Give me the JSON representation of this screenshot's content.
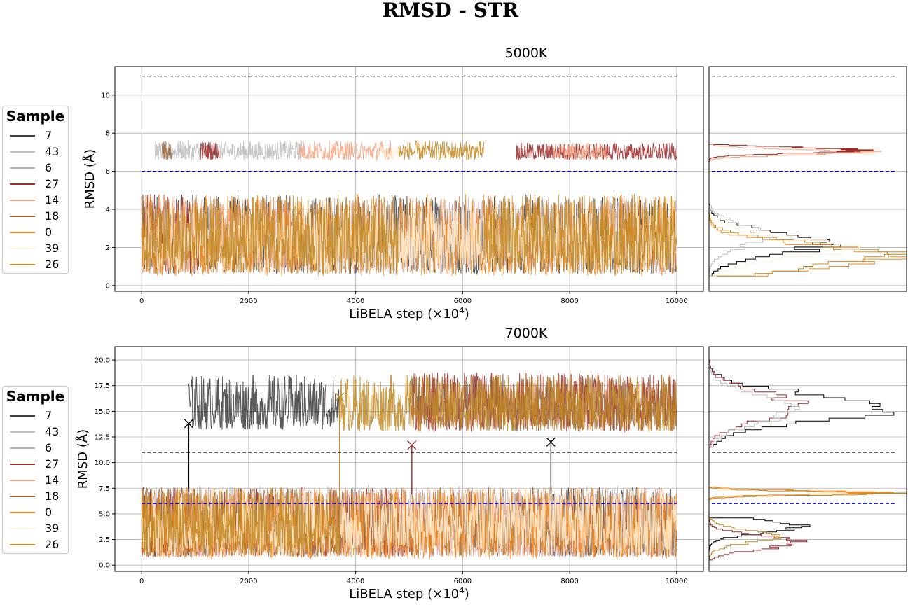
{
  "title": "RMSD - STR",
  "colors": {
    "7": "#3d3d3d",
    "43": "#bdbdbd",
    "6": "#c8a9b0",
    "27": "#9c2a2a",
    "14": "#f4a582",
    "18": "#a0673d",
    "0": "#f08a1e",
    "39": "#fff2d8",
    "26": "#c28a25",
    "thr_high": "#000000",
    "thr_low": "#0000ff"
  },
  "chart_data": [
    {
      "type": "line",
      "panel_title": "5000K",
      "xlabel": "LiBELA step (×10",
      "xlabel_sup": "4",
      "xlabel_end": ")",
      "ylabel": "RMSD (Å)",
      "xlim": [
        -500,
        10500
      ],
      "ylim": [
        -0.3,
        11.5
      ],
      "xticks": [
        0,
        2000,
        4000,
        6000,
        8000,
        10000
      ],
      "yticks": [
        0,
        2,
        4,
        6,
        8,
        10
      ],
      "ytick_labels": [
        "0",
        "2",
        "4",
        "6",
        "8",
        "10"
      ],
      "threshold_high": 11,
      "threshold_low": 6,
      "legend_title": "Sample",
      "series": [
        {
          "name": "7",
          "bands": [
            {
              "x0": 0,
              "x1": 10000,
              "lo": 0.6,
              "hi": 4.8
            }
          ],
          "markers": []
        },
        {
          "name": "43",
          "bands": [
            {
              "x0": 0,
              "x1": 250,
              "lo": 0.6,
              "hi": 4.8
            },
            {
              "x0": 250,
              "x1": 3000,
              "lo": 6.6,
              "hi": 7.6
            }
          ],
          "markers": []
        },
        {
          "name": "6",
          "bands": [
            {
              "x0": 0,
              "x1": 10000,
              "lo": 0.6,
              "hi": 4.6
            }
          ],
          "markers": []
        },
        {
          "name": "27",
          "bands": [
            {
              "x0": 0,
              "x1": 1100,
              "lo": 0.6,
              "hi": 4.8
            },
            {
              "x0": 1100,
              "x1": 1450,
              "lo": 6.6,
              "hi": 7.6
            },
            {
              "x0": 7000,
              "x1": 10000,
              "lo": 6.6,
              "hi": 7.5
            }
          ],
          "markers": []
        },
        {
          "name": "14",
          "bands": [
            {
              "x0": 0,
              "x1": 2950,
              "lo": 0.6,
              "hi": 4.8
            },
            {
              "x0": 2950,
              "x1": 4700,
              "lo": 6.6,
              "hi": 7.6
            },
            {
              "x0": 7700,
              "x1": 8700,
              "lo": 6.6,
              "hi": 7.5
            }
          ],
          "markers": []
        },
        {
          "name": "18",
          "bands": [
            {
              "x0": 0,
              "x1": 380,
              "lo": 0.6,
              "hi": 4.8
            },
            {
              "x0": 380,
              "x1": 560,
              "lo": 6.6,
              "hi": 7.6
            }
          ],
          "markers": []
        },
        {
          "name": "0",
          "bands": [
            {
              "x0": 0,
              "x1": 10000,
              "lo": 0.5,
              "hi": 4.8
            }
          ],
          "markers": []
        },
        {
          "name": "39",
          "bands": [
            {
              "x0": 0,
              "x1": 10000,
              "lo": 0.8,
              "hi": 4.2
            },
            {
              "x0": 4400,
              "x1": 4900,
              "lo": 6.6,
              "hi": 7.4
            }
          ],
          "markers": []
        },
        {
          "name": "26",
          "bands": [
            {
              "x0": 0,
              "x1": 4800,
              "lo": 0.6,
              "hi": 4.8
            },
            {
              "x0": 4800,
              "x1": 6400,
              "lo": 6.6,
              "hi": 7.6
            },
            {
              "x0": 6400,
              "x1": 10000,
              "lo": 0.6,
              "hi": 4.8
            }
          ],
          "markers": []
        }
      ],
      "hist": [
        {
          "name": "7",
          "lo": 0.5,
          "hi": 4.3,
          "peak": 0.62,
          "center": 2.2
        },
        {
          "name": "27",
          "lo": 6.5,
          "hi": 7.4,
          "peak": 0.88,
          "center": 7.1
        },
        {
          "name": "14",
          "lo": 6.5,
          "hi": 7.4,
          "peak": 0.86,
          "center": 7.0
        },
        {
          "name": "0",
          "lo": 0.5,
          "hi": 4.3,
          "peak": 0.98,
          "center": 1.5
        },
        {
          "name": "26",
          "lo": 0.5,
          "hi": 4.3,
          "peak": 0.98,
          "center": 1.6
        },
        {
          "name": "43",
          "lo": 0.5,
          "hi": 4.3,
          "peak": 0.3,
          "center": 2.6
        },
        {
          "name": "39",
          "lo": 0.5,
          "hi": 4.3,
          "peak": 0.7,
          "center": 2.0
        }
      ]
    },
    {
      "type": "line",
      "panel_title": "7000K",
      "xlabel": "LiBELA step (×10",
      "xlabel_sup": "4",
      "xlabel_end": ")",
      "ylabel": "RMSD (Å)",
      "xlim": [
        -500,
        10500
      ],
      "ylim": [
        -0.6,
        21.3
      ],
      "xticks": [
        0,
        2000,
        4000,
        6000,
        8000,
        10000
      ],
      "yticks": [
        0,
        2.5,
        5,
        7.5,
        10,
        12.5,
        15,
        17.5,
        20
      ],
      "ytick_labels": [
        "0.0",
        "2.5",
        "5.0",
        "7.5",
        "10.0",
        "12.5",
        "15.0",
        "17.5",
        "20.0"
      ],
      "threshold_high": 11,
      "threshold_low": 6,
      "legend_title": "Sample",
      "series": [
        {
          "name": "7",
          "bands": [
            {
              "x0": 0,
              "x1": 880,
              "lo": 0.8,
              "hi": 7.6
            },
            {
              "x0": 880,
              "x1": 3700,
              "lo": 13.2,
              "hi": 18.6
            },
            {
              "x0": 7650,
              "x1": 10000,
              "lo": 0.8,
              "hi": 7.6
            }
          ],
          "markers": [
            {
              "x": 880,
              "y": 13.8
            },
            {
              "x": 7650,
              "y": 12.0
            }
          ]
        },
        {
          "name": "43",
          "bands": [
            {
              "x0": 0,
              "x1": 10000,
              "lo": 0.8,
              "hi": 7.8
            }
          ],
          "markers": []
        },
        {
          "name": "6",
          "bands": [
            {
              "x0": 0,
              "x1": 10000,
              "lo": 0.8,
              "hi": 7.6
            }
          ],
          "markers": []
        },
        {
          "name": "27",
          "bands": [
            {
              "x0": 0,
              "x1": 5050,
              "lo": 0.8,
              "hi": 7.6
            },
            {
              "x0": 5050,
              "x1": 10000,
              "lo": 13.0,
              "hi": 18.8
            }
          ],
          "markers": [
            {
              "x": 5050,
              "y": 11.7
            }
          ]
        },
        {
          "name": "14",
          "bands": [
            {
              "x0": 0,
              "x1": 10000,
              "lo": 0.8,
              "hi": 7.6
            }
          ],
          "markers": []
        },
        {
          "name": "18",
          "bands": [
            {
              "x0": 0,
              "x1": 10000,
              "lo": 0.8,
              "hi": 7.6
            },
            {
              "x0": 5000,
              "x1": 10000,
              "lo": 13.0,
              "hi": 18.6
            }
          ],
          "markers": []
        },
        {
          "name": "0",
          "bands": [
            {
              "x0": 0,
              "x1": 10000,
              "lo": 0.6,
              "hi": 7.6
            }
          ],
          "markers": []
        },
        {
          "name": "39",
          "bands": [
            {
              "x0": 0,
              "x1": 10000,
              "lo": 1.0,
              "hi": 7.4
            }
          ],
          "markers": []
        },
        {
          "name": "26",
          "bands": [
            {
              "x0": 0,
              "x1": 3700,
              "lo": 0.8,
              "hi": 7.6
            },
            {
              "x0": 3700,
              "x1": 10000,
              "lo": 13.0,
              "hi": 18.6
            }
          ],
          "markers": [
            {
              "x": 3700,
              "y": 16.4
            }
          ]
        }
      ],
      "hist": [
        {
          "name": "7",
          "lo": 11.5,
          "hi": 20.0,
          "peak": 0.95,
          "center": 15.3
        },
        {
          "name": "27",
          "lo": 11.5,
          "hi": 20.0,
          "peak": 0.48,
          "center": 15.5
        },
        {
          "name": "43",
          "lo": 11.5,
          "hi": 20.0,
          "peak": 0.45,
          "center": 15.2
        },
        {
          "name": "26",
          "lo": 6.4,
          "hi": 7.6,
          "peak": 0.92,
          "center": 7.0
        },
        {
          "name": "0",
          "lo": 6.4,
          "hi": 7.6,
          "peak": 0.9,
          "center": 7.1
        },
        {
          "name": "7",
          "lo": 0.5,
          "hi": 4.6,
          "peak": 0.5,
          "center": 3.8
        },
        {
          "name": "27",
          "lo": 0.5,
          "hi": 4.6,
          "peak": 0.48,
          "center": 2.2
        },
        {
          "name": "26",
          "lo": 0.5,
          "hi": 4.6,
          "peak": 0.35,
          "center": 2.8
        }
      ]
    }
  ]
}
